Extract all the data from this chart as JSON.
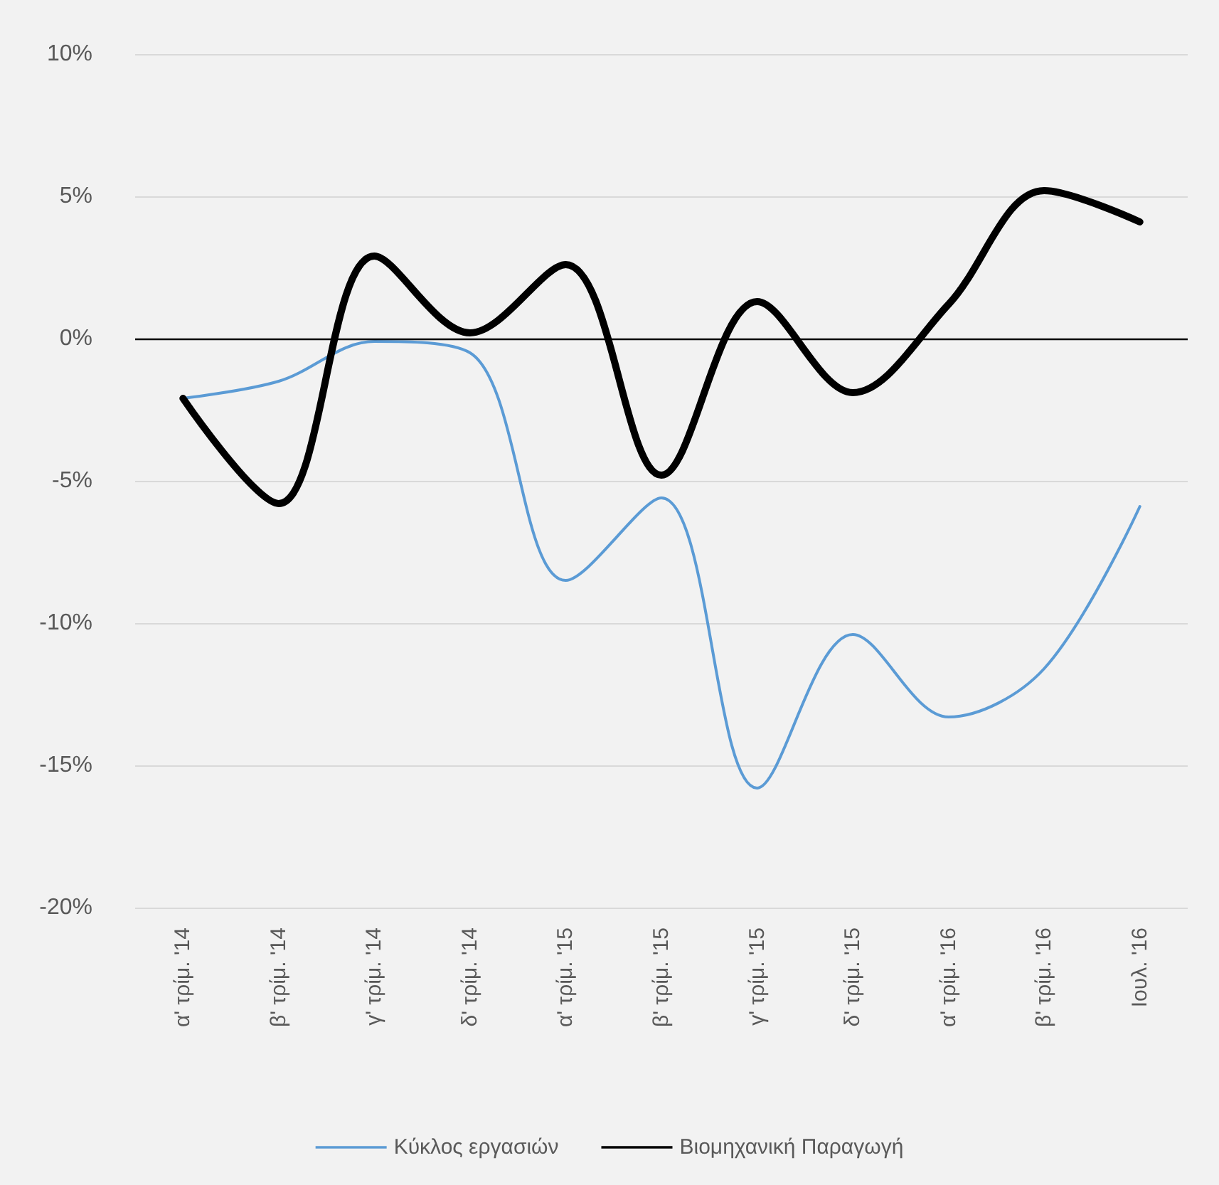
{
  "chart_data": {
    "type": "line",
    "categories": [
      "α' τρίμ. '14",
      "β' τρίμ. '14",
      "γ' τρίμ. '14",
      "δ' τρίμ. '14",
      "α' τρίμ. '15",
      "β' τρίμ. '15",
      "γ' τρίμ. '15",
      "δ' τρίμ. '15",
      "α' τρίμ. '16",
      "β' τρίμ. '16",
      "Ιουλ. '16"
    ],
    "series": [
      {
        "name": "Κύκλος εργασιών",
        "color": "#5b9bd5",
        "values": [
          -2.1,
          -1.5,
          -0.1,
          -0.5,
          -8.5,
          -5.6,
          -15.8,
          -10.4,
          -13.3,
          -11.6,
          -5.9
        ]
      },
      {
        "name": "Βιομηχανική Παραγωγή",
        "color": "#000000",
        "values": [
          -2.1,
          -5.8,
          2.9,
          0.2,
          2.6,
          -4.8,
          1.3,
          -1.9,
          1.2,
          5.2,
          4.1
        ]
      }
    ],
    "ylim": [
      -20,
      10
    ],
    "yticks": [
      {
        "value": -20,
        "label": "-20%"
      },
      {
        "value": -15,
        "label": "-15%"
      },
      {
        "value": -10,
        "label": "-10%"
      },
      {
        "value": -5,
        "label": "-5%"
      },
      {
        "value": 0,
        "label": "0%"
      },
      {
        "value": 5,
        "label": "5%"
      },
      {
        "value": 10,
        "label": "10%"
      }
    ],
    "ref_lines": [
      {
        "axis": "y",
        "value": 0,
        "color": "#000000"
      }
    ],
    "grid": "y",
    "legend": "bottom",
    "marker": "none",
    "line_style": "solid"
  }
}
